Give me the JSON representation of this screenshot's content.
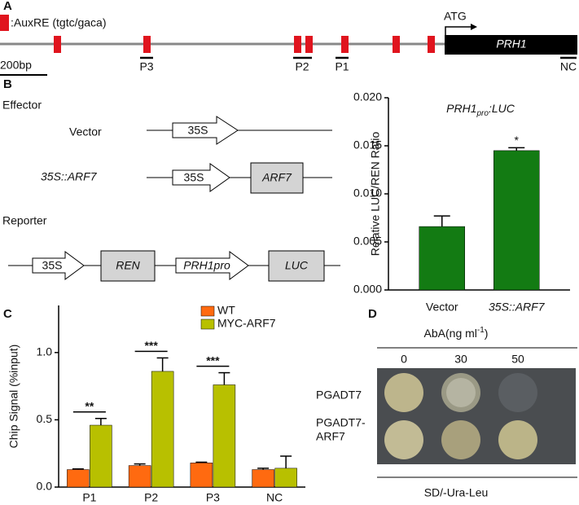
{
  "panels": {
    "a": "A",
    "b": "B",
    "c": "C",
    "d": "D"
  },
  "promoter": {
    "legend": ":AuxRE (tgtc/gaca)",
    "atg": "ATG",
    "gene": "PRH1",
    "scale": "200bp",
    "primers": [
      "P3",
      "P2",
      "P1",
      "NC"
    ]
  },
  "constructs": {
    "effector": "Effector",
    "vector": "Vector",
    "arf7_construct": "35S::ARF7",
    "promoter_35s": "35S",
    "arf7": "ARF7",
    "reporter": "Reporter",
    "ren": "REN",
    "prh1pro": "PRH1pro",
    "luc": "LUC"
  },
  "chart_data": [
    {
      "type": "bar",
      "title": [
        "PRH1",
        "pro",
        ":LUC"
      ],
      "y_label": "Relative LUC/REN Ratio",
      "categories": [
        "Vector",
        "35S::ARF7"
      ],
      "values": [
        0.0066,
        0.0145
      ],
      "errors": [
        0.0011,
        0.0003
      ],
      "color": "#137b13",
      "annotations": [
        null,
        "*"
      ],
      "ylim": [
        0,
        0.02
      ],
      "yticks": [
        {
          "value": 0,
          "label": "0.000"
        },
        {
          "value": 0.005,
          "label": "0.005"
        },
        {
          "value": 0.01,
          "label": "0.010"
        },
        {
          "value": 0.015,
          "label": "0.015"
        },
        {
          "value": 0.02,
          "label": "0.020"
        }
      ]
    },
    {
      "type": "grouped-bar",
      "y_label": "Chip Signal (%input)",
      "categories": [
        "P1",
        "P2",
        "P3",
        "NC"
      ],
      "series": [
        {
          "name": "WT",
          "color": "#ff6a10",
          "values": [
            0.13,
            0.16,
            0.18,
            0.13
          ],
          "errors": [
            0.005,
            0.012,
            0.005,
            0.01
          ]
        },
        {
          "name": "MYC-ARF7",
          "color": "#b8c000",
          "values": [
            0.46,
            0.86,
            0.76,
            0.14
          ],
          "errors": [
            0.05,
            0.1,
            0.09,
            0.09
          ]
        }
      ],
      "annotations": [
        "**",
        "***",
        "***",
        null
      ],
      "ylim": [
        0,
        1.35
      ],
      "yticks": [
        {
          "value": 0,
          "label": "0.0"
        },
        {
          "value": 0.5,
          "label": "0.5"
        },
        {
          "value": 1,
          "label": "1.0"
        }
      ],
      "legend": "top-right"
    }
  ],
  "y1h": {
    "treatment": [
      "AbA(ng ml",
      "-1",
      ")"
    ],
    "doses": [
      "0",
      "30",
      "50"
    ],
    "rows": [
      "PGADT7",
      [
        "PGADT7-",
        "ARF7"
      ]
    ],
    "medium": "SD/-Ura-Leu"
  }
}
